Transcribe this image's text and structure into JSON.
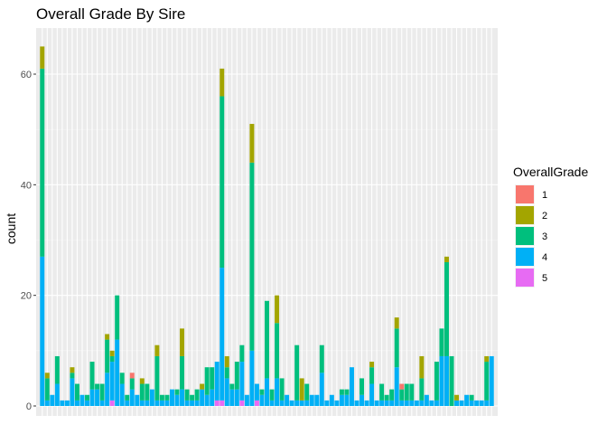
{
  "chart_data": {
    "type": "bar",
    "stacked": true,
    "title": "Overall Grade By Sire",
    "xlabel": "",
    "ylabel": "count",
    "ylim": [
      0,
      68
    ],
    "yticks": [
      0,
      20,
      40,
      60
    ],
    "grid": true,
    "legend": {
      "title": "OverallGrade",
      "position": "right",
      "entries": [
        "1",
        "2",
        "3",
        "4",
        "5"
      ]
    },
    "series": [
      {
        "name": "1",
        "color": "#F8766D",
        "values": [
          0,
          0,
          0,
          0,
          0,
          0,
          0,
          0,
          0,
          0,
          0,
          0,
          0,
          0,
          0,
          0,
          0,
          0,
          1,
          0,
          0,
          0,
          0,
          0,
          0,
          0,
          0,
          0,
          0,
          0,
          0,
          0,
          0,
          0,
          0,
          0,
          0,
          0,
          0,
          0,
          0,
          0,
          0,
          0,
          0,
          0,
          0,
          0,
          0,
          0,
          0,
          0,
          0,
          0,
          0,
          0,
          0,
          0,
          0,
          0,
          0,
          0,
          0,
          0,
          0,
          0,
          0,
          0,
          0,
          0,
          0,
          0,
          1,
          0,
          0,
          0,
          0,
          0,
          0,
          0,
          0,
          0,
          0,
          0,
          0,
          0,
          0,
          0,
          0,
          0,
          0
        ]
      },
      {
        "name": "2",
        "color": "#A3A500",
        "values": [
          4,
          1,
          0,
          0,
          0,
          0,
          1,
          0,
          0,
          0,
          0,
          0,
          0,
          1,
          1,
          0,
          0,
          0,
          0,
          0,
          1,
          0,
          0,
          2,
          0,
          0,
          0,
          0,
          5,
          0,
          0,
          0,
          1,
          0,
          0,
          0,
          5,
          2,
          0,
          0,
          0,
          0,
          7,
          0,
          0,
          0,
          0,
          5,
          0,
          0,
          0,
          0,
          4,
          0,
          0,
          0,
          0,
          0,
          0,
          0,
          0,
          0,
          0,
          0,
          0,
          0,
          1,
          0,
          0,
          0,
          0,
          2,
          0,
          0,
          0,
          0,
          4,
          0,
          0,
          0,
          0,
          1,
          0,
          1,
          0,
          0,
          0,
          0,
          0,
          1,
          0
        ]
      },
      {
        "name": "3",
        "color": "#00BF7D",
        "values": [
          34,
          4,
          0,
          5,
          0,
          0,
          1,
          3,
          0,
          1,
          5,
          1,
          3,
          6,
          1,
          8,
          2,
          1,
          2,
          0,
          3,
          3,
          0,
          8,
          1,
          1,
          0,
          1,
          6,
          2,
          1,
          2,
          0,
          5,
          4,
          0,
          31,
          2,
          1,
          5,
          3,
          0,
          34,
          0,
          1,
          14,
          2,
          10,
          4,
          0,
          0,
          10,
          0,
          3,
          0,
          0,
          5,
          0,
          0,
          0,
          1,
          1,
          0,
          0,
          3,
          0,
          3,
          0,
          3,
          1,
          2,
          7,
          2,
          3,
          3,
          0,
          4,
          0,
          0,
          7,
          5,
          17,
          9,
          0,
          0,
          0,
          1,
          0,
          0,
          7,
          0
        ]
      },
      {
        "name": "4",
        "color": "#00B0F6",
        "values": [
          27,
          1,
          2,
          4,
          1,
          1,
          5,
          1,
          2,
          1,
          3,
          3,
          1,
          6,
          7,
          12,
          4,
          1,
          3,
          2,
          1,
          1,
          3,
          1,
          1,
          1,
          3,
          2,
          3,
          1,
          1,
          1,
          3,
          2,
          3,
          7,
          24,
          5,
          3,
          3,
          7,
          2,
          10,
          3,
          2,
          5,
          1,
          5,
          1,
          2,
          1,
          1,
          1,
          1,
          2,
          2,
          6,
          1,
          2,
          1,
          2,
          2,
          7,
          1,
          2,
          1,
          4,
          1,
          1,
          1,
          1,
          7,
          1,
          1,
          1,
          1,
          1,
          2,
          1,
          1,
          9,
          9,
          0,
          1,
          1,
          2,
          1,
          1,
          1,
          1,
          9
        ]
      },
      {
        "name": "5",
        "color": "#E76BF3",
        "values": [
          0,
          0,
          0,
          0,
          0,
          0,
          0,
          0,
          0,
          0,
          0,
          0,
          0,
          0,
          1,
          0,
          0,
          0,
          0,
          0,
          0,
          0,
          0,
          0,
          0,
          0,
          0,
          0,
          0,
          0,
          0,
          0,
          0,
          0,
          0,
          1,
          1,
          0,
          0,
          0,
          1,
          0,
          0,
          1,
          0,
          0,
          0,
          0,
          0,
          0,
          0,
          0,
          0,
          0,
          0,
          0,
          0,
          0,
          0,
          0,
          0,
          0,
          0,
          0,
          0,
          0,
          0,
          0,
          0,
          0,
          0,
          0,
          0,
          0,
          0,
          0,
          0,
          0,
          0,
          0,
          0,
          0,
          0,
          0,
          0,
          0,
          0,
          0,
          0,
          0,
          0
        ]
      }
    ]
  }
}
